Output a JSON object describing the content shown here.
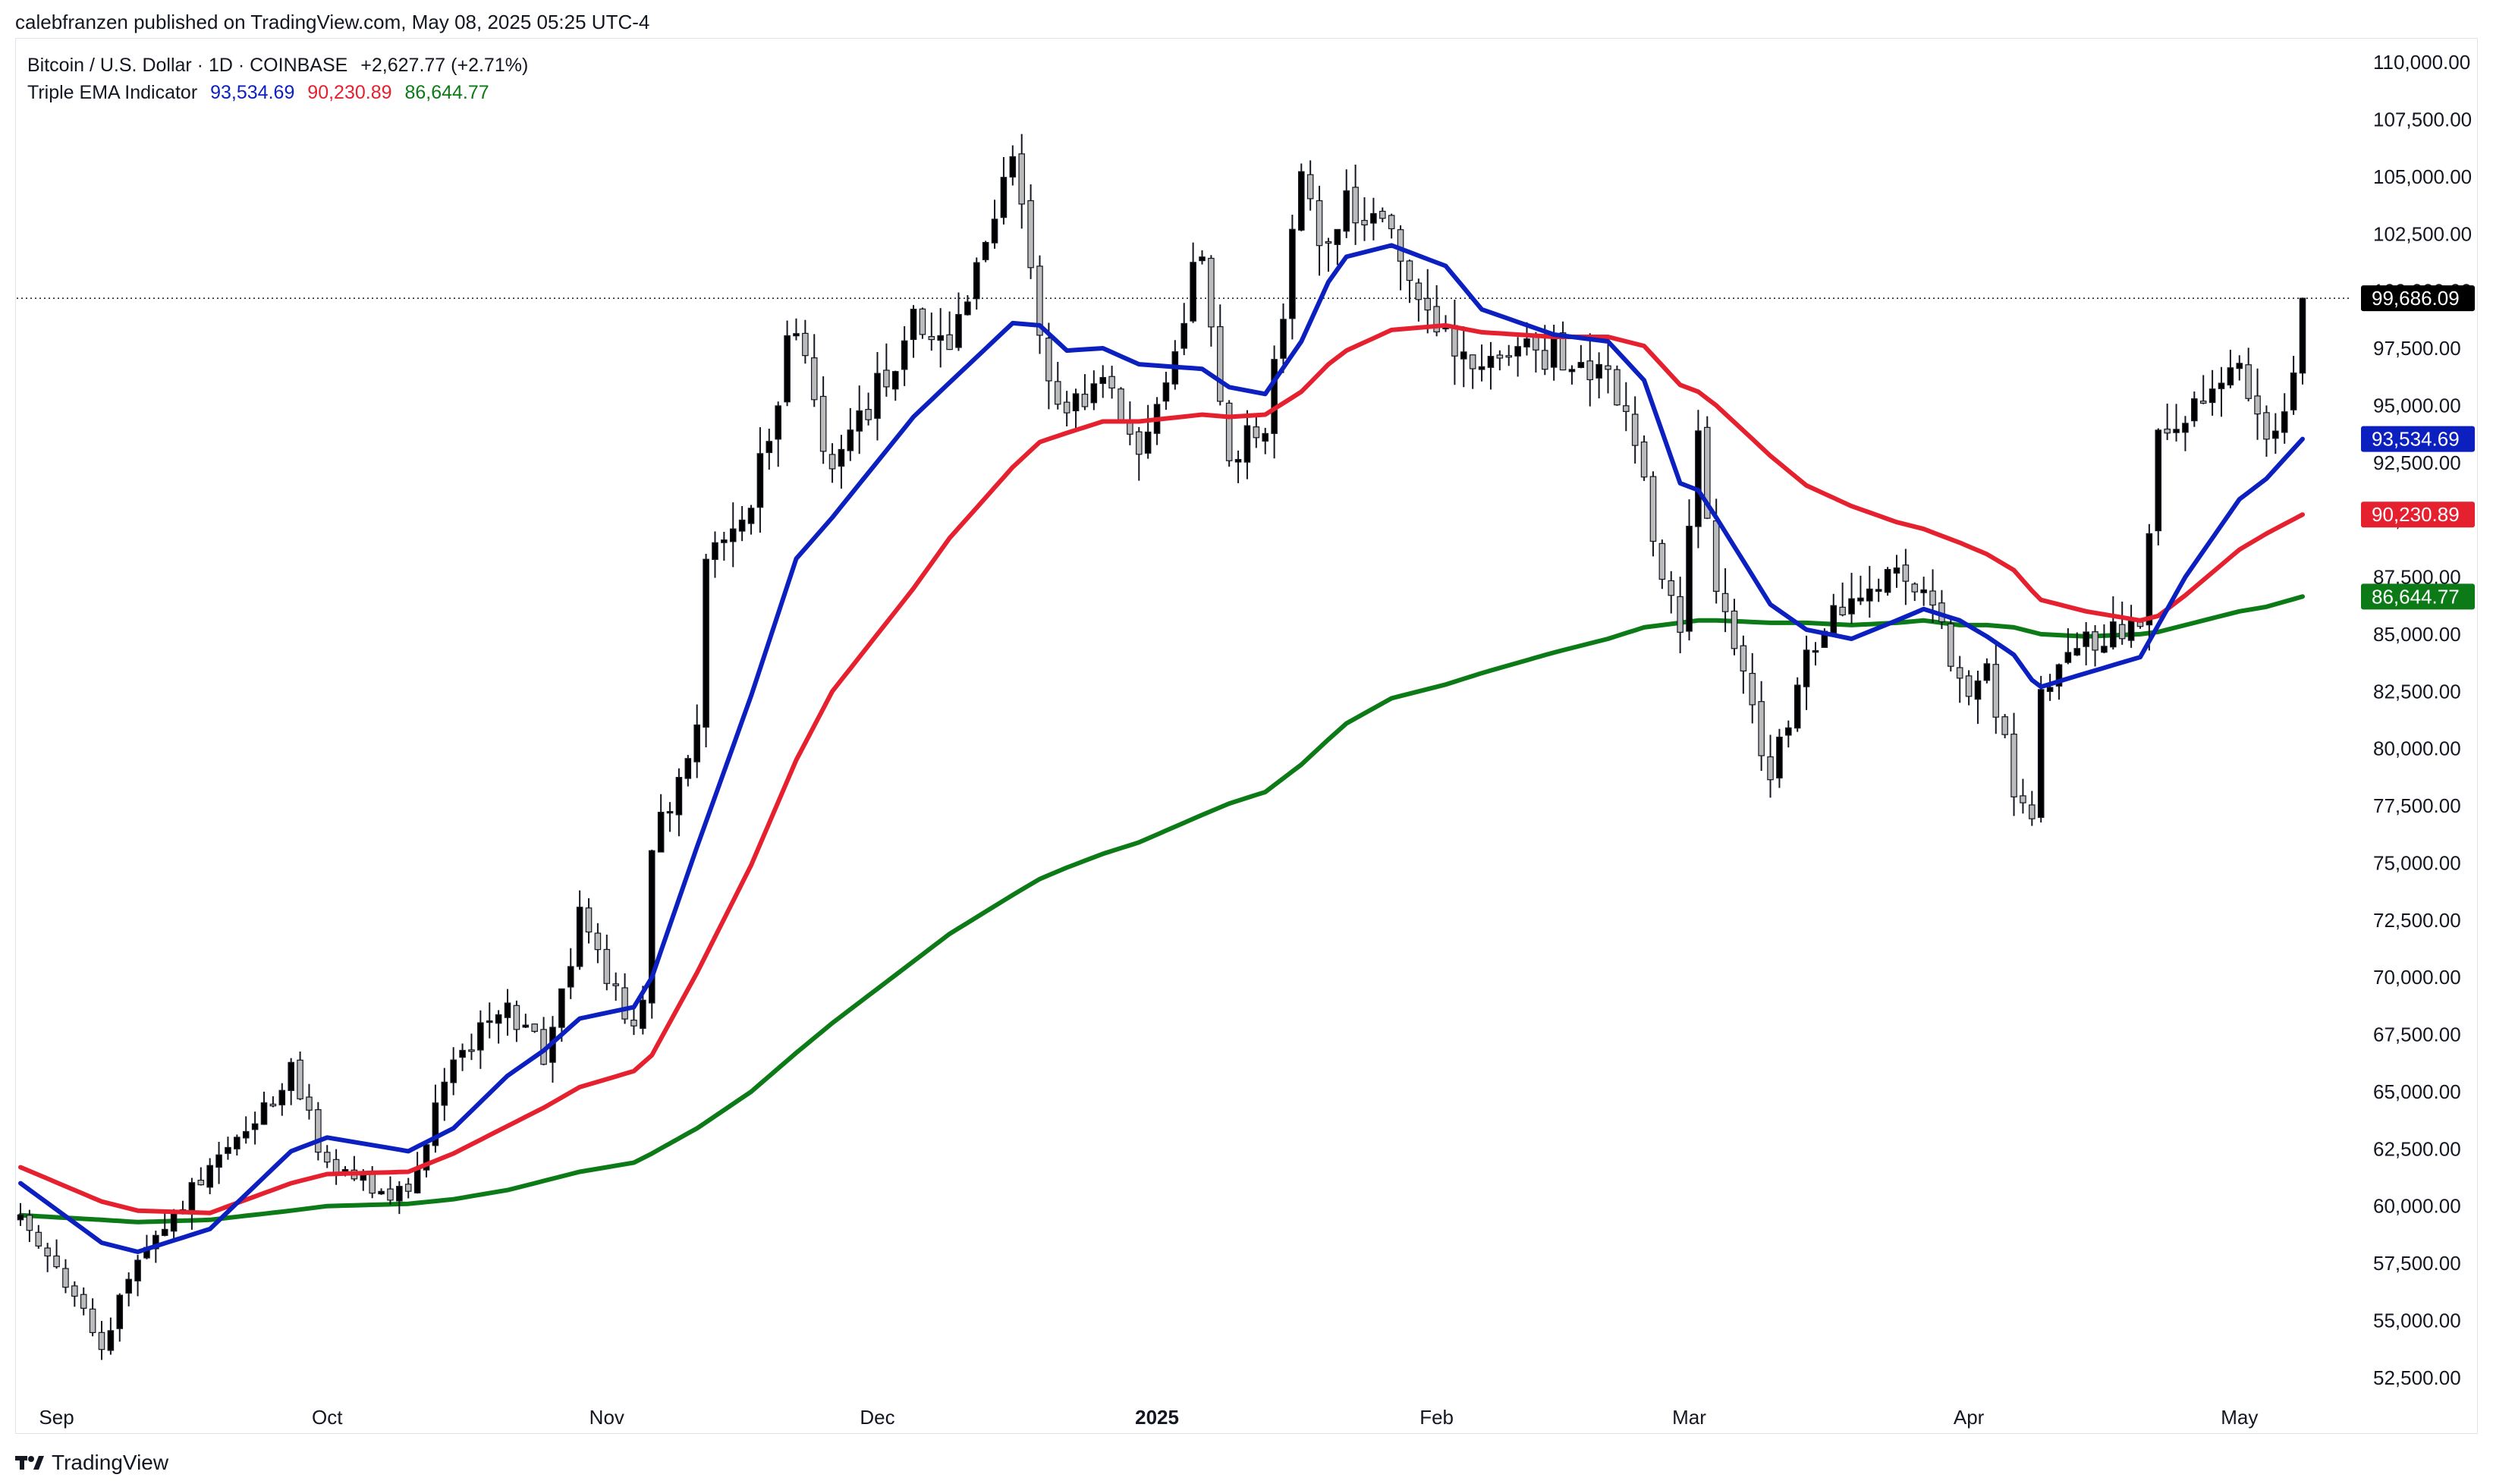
{
  "byline": "calebfranzen published on TradingView.com, May 08, 2025 05:25 UTC-4",
  "legend": {
    "symbol_line": "Bitcoin / U.S. Dollar · 1D · COINBASE",
    "change": "+2,627.77 (+2.71%)",
    "indicator_name": "Triple EMA Indicator",
    "ema_fast": "93,534.69",
    "ema_mid": "90,230.89",
    "ema_slow": "86,644.77"
  },
  "footer": {
    "brand": "TradingView"
  },
  "colors": {
    "ema_fast": "#0c1fbf",
    "ema_mid": "#e5202f",
    "ema_slow": "#0c7a16",
    "up": "#000000",
    "down": "#bbbbbb",
    "price_badge": "#000000"
  },
  "chart_data": {
    "type": "candlestick",
    "title": "Bitcoin / U.S. Dollar · 1D · COINBASE",
    "ylim": [
      51500,
      111000
    ],
    "y_ticks": [
      "52,500.00",
      "55,000.00",
      "57,500.00",
      "60,000.00",
      "62,500.00",
      "65,000.00",
      "67,500.00",
      "70,000.00",
      "72,500.00",
      "75,000.00",
      "77,500.00",
      "80,000.00",
      "82,500.00",
      "85,000.00",
      "87,500.00",
      "90,000.00",
      "92,500.00",
      "95,000.00",
      "97,500.00",
      "100,000.00",
      "102,500.00",
      "105,000.00",
      "107,500.00",
      "110,000.00"
    ],
    "x_ticks": [
      {
        "label": "Sep",
        "date": "2024-09-01"
      },
      {
        "label": "Oct",
        "date": "2024-10-01"
      },
      {
        "label": "Nov",
        "date": "2024-11-01"
      },
      {
        "label": "Dec",
        "date": "2024-12-01"
      },
      {
        "label": "2025",
        "date": "2025-01-01"
      },
      {
        "label": "Feb",
        "date": "2025-02-01"
      },
      {
        "label": "Mar",
        "date": "2025-03-01"
      },
      {
        "label": "Apr",
        "date": "2025-04-01"
      },
      {
        "label": "May",
        "date": "2025-05-01"
      }
    ],
    "date_range": [
      "2024-08-28",
      "2025-05-08"
    ],
    "last_price": 99686.09,
    "last_price_label": "99,686.09",
    "price_waypoints": [
      [
        "2024-08-28",
        59400
      ],
      [
        "2024-09-06",
        53900
      ],
      [
        "2024-09-10",
        57600
      ],
      [
        "2024-09-18",
        61800
      ],
      [
        "2024-09-27",
        65800
      ],
      [
        "2024-10-01",
        61600
      ],
      [
        "2024-10-10",
        60300
      ],
      [
        "2024-10-15",
        66800
      ],
      [
        "2024-10-21",
        68500
      ],
      [
        "2024-10-25",
        66700
      ],
      [
        "2024-10-29",
        72500
      ],
      [
        "2024-11-04",
        67800
      ],
      [
        "2024-11-05",
        69400
      ],
      [
        "2024-11-06",
        75800
      ],
      [
        "2024-11-11",
        81000
      ],
      [
        "2024-11-12",
        88700
      ],
      [
        "2024-11-17",
        90600
      ],
      [
        "2024-11-22",
        98900
      ],
      [
        "2024-11-26",
        91900
      ],
      [
        "2024-12-05",
        98800
      ],
      [
        "2024-12-09",
        97300
      ],
      [
        "2024-12-16",
        106100
      ],
      [
        "2024-12-19",
        97300
      ],
      [
        "2024-12-22",
        94800
      ],
      [
        "2024-12-26",
        95800
      ],
      [
        "2024-12-30",
        92700
      ],
      [
        "2025-01-06",
        101800
      ],
      [
        "2025-01-09",
        92500
      ],
      [
        "2025-01-13",
        94500
      ],
      [
        "2025-01-17",
        104400
      ],
      [
        "2025-01-20",
        101300
      ],
      [
        "2025-01-22",
        103700
      ],
      [
        "2025-01-27",
        102100
      ],
      [
        "2025-02-02",
        97700
      ],
      [
        "2025-02-06",
        96600
      ],
      [
        "2025-02-14",
        97500
      ],
      [
        "2025-02-20",
        96600
      ],
      [
        "2025-02-24",
        91500
      ],
      [
        "2025-02-28",
        84400
      ],
      [
        "2025-03-02",
        94300
      ],
      [
        "2025-03-04",
        86900
      ],
      [
        "2025-03-10",
        78600
      ],
      [
        "2025-03-14",
        84100
      ],
      [
        "2025-03-19",
        86800
      ],
      [
        "2025-03-24",
        88200
      ],
      [
        "2025-03-27",
        87200
      ],
      [
        "2025-03-31",
        82500
      ],
      [
        "2025-04-03",
        83300
      ],
      [
        "2025-04-06",
        78400
      ],
      [
        "2025-04-08",
        76300
      ],
      [
        "2025-04-09",
        82600
      ],
      [
        "2025-04-14",
        84600
      ],
      [
        "2025-04-20",
        85100
      ],
      [
        "2025-04-22",
        93500
      ],
      [
        "2025-04-25",
        94700
      ],
      [
        "2025-05-01",
        96500
      ],
      [
        "2025-05-04",
        94300
      ],
      [
        "2025-05-06",
        94800
      ],
      [
        "2025-05-07",
        97000
      ],
      [
        "2025-05-08",
        99686
      ]
    ],
    "ema_fast": {
      "name": "93,534.69",
      "color": "#0c1fbf",
      "points": [
        [
          "2024-08-28",
          61000
        ],
        [
          "2024-09-06",
          58400
        ],
        [
          "2024-09-10",
          58000
        ],
        [
          "2024-09-18",
          59000
        ],
        [
          "2024-09-27",
          62400
        ],
        [
          "2024-10-01",
          63000
        ],
        [
          "2024-10-10",
          62400
        ],
        [
          "2024-10-15",
          63400
        ],
        [
          "2024-10-21",
          65700
        ],
        [
          "2024-10-25",
          66800
        ],
        [
          "2024-10-29",
          68200
        ],
        [
          "2024-11-04",
          68700
        ],
        [
          "2024-11-06",
          70000
        ],
        [
          "2024-11-11",
          75700
        ],
        [
          "2024-11-17",
          82300
        ],
        [
          "2024-11-22",
          88300
        ],
        [
          "2024-11-26",
          90100
        ],
        [
          "2024-12-05",
          94500
        ],
        [
          "2024-12-09",
          96000
        ],
        [
          "2024-12-16",
          98600
        ],
        [
          "2024-12-19",
          98500
        ],
        [
          "2024-12-22",
          97400
        ],
        [
          "2024-12-26",
          97500
        ],
        [
          "2024-12-30",
          96800
        ],
        [
          "2025-01-06",
          96600
        ],
        [
          "2025-01-09",
          95800
        ],
        [
          "2025-01-13",
          95500
        ],
        [
          "2025-01-17",
          97800
        ],
        [
          "2025-01-20",
          100400
        ],
        [
          "2025-01-22",
          101500
        ],
        [
          "2025-01-27",
          102000
        ],
        [
          "2025-02-02",
          101100
        ],
        [
          "2025-02-06",
          99200
        ],
        [
          "2025-02-14",
          98100
        ],
        [
          "2025-02-20",
          97800
        ],
        [
          "2025-02-24",
          96100
        ],
        [
          "2025-02-28",
          91600
        ],
        [
          "2025-03-02",
          91300
        ],
        [
          "2025-03-04",
          90100
        ],
        [
          "2025-03-10",
          86300
        ],
        [
          "2025-03-14",
          85200
        ],
        [
          "2025-03-19",
          84800
        ],
        [
          "2025-03-24",
          85600
        ],
        [
          "2025-03-27",
          86100
        ],
        [
          "2025-03-31",
          85600
        ],
        [
          "2025-04-03",
          84900
        ],
        [
          "2025-04-06",
          84100
        ],
        [
          "2025-04-08",
          83000
        ],
        [
          "2025-04-09",
          82700
        ],
        [
          "2025-04-14",
          83300
        ],
        [
          "2025-04-20",
          84000
        ],
        [
          "2025-04-22",
          85400
        ],
        [
          "2025-04-25",
          87500
        ],
        [
          "2025-05-01",
          90900
        ],
        [
          "2025-05-04",
          91800
        ],
        [
          "2025-05-08",
          93535
        ]
      ]
    },
    "ema_mid": {
      "name": "90,230.89",
      "color": "#e5202f",
      "points": [
        [
          "2024-08-28",
          61700
        ],
        [
          "2024-09-06",
          60200
        ],
        [
          "2024-09-10",
          59800
        ],
        [
          "2024-09-18",
          59700
        ],
        [
          "2024-09-27",
          61000
        ],
        [
          "2024-10-01",
          61400
        ],
        [
          "2024-10-10",
          61500
        ],
        [
          "2024-10-15",
          62300
        ],
        [
          "2024-10-21",
          63500
        ],
        [
          "2024-10-25",
          64300
        ],
        [
          "2024-10-29",
          65200
        ],
        [
          "2024-11-04",
          65900
        ],
        [
          "2024-11-06",
          66600
        ],
        [
          "2024-11-11",
          70200
        ],
        [
          "2024-11-17",
          74900
        ],
        [
          "2024-11-22",
          79500
        ],
        [
          "2024-11-26",
          82500
        ],
        [
          "2024-12-05",
          87000
        ],
        [
          "2024-12-09",
          89200
        ],
        [
          "2024-12-16",
          92300
        ],
        [
          "2024-12-19",
          93400
        ],
        [
          "2024-12-22",
          93800
        ],
        [
          "2024-12-26",
          94300
        ],
        [
          "2024-12-30",
          94300
        ],
        [
          "2025-01-06",
          94600
        ],
        [
          "2025-01-09",
          94500
        ],
        [
          "2025-01-13",
          94600
        ],
        [
          "2025-01-17",
          95600
        ],
        [
          "2025-01-20",
          96800
        ],
        [
          "2025-01-22",
          97400
        ],
        [
          "2025-01-27",
          98300
        ],
        [
          "2025-02-02",
          98500
        ],
        [
          "2025-02-06",
          98200
        ],
        [
          "2025-02-14",
          98000
        ],
        [
          "2025-02-20",
          98000
        ],
        [
          "2025-02-24",
          97600
        ],
        [
          "2025-02-28",
          95900
        ],
        [
          "2025-03-02",
          95600
        ],
        [
          "2025-03-04",
          95000
        ],
        [
          "2025-03-10",
          92800
        ],
        [
          "2025-03-14",
          91500
        ],
        [
          "2025-03-19",
          90600
        ],
        [
          "2025-03-24",
          89900
        ],
        [
          "2025-03-27",
          89600
        ],
        [
          "2025-03-31",
          89000
        ],
        [
          "2025-04-03",
          88500
        ],
        [
          "2025-04-06",
          87800
        ],
        [
          "2025-04-08",
          86900
        ],
        [
          "2025-04-09",
          86500
        ],
        [
          "2025-04-14",
          86000
        ],
        [
          "2025-04-20",
          85600
        ],
        [
          "2025-04-22",
          85800
        ],
        [
          "2025-04-25",
          86700
        ],
        [
          "2025-05-01",
          88700
        ],
        [
          "2025-05-04",
          89400
        ],
        [
          "2025-05-08",
          90231
        ]
      ]
    },
    "ema_slow": {
      "name": "86,644.77",
      "color": "#0c7a16",
      "points": [
        [
          "2024-08-28",
          59600
        ],
        [
          "2024-09-06",
          59400
        ],
        [
          "2024-09-10",
          59300
        ],
        [
          "2024-09-18",
          59400
        ],
        [
          "2024-09-27",
          59800
        ],
        [
          "2024-10-01",
          60000
        ],
        [
          "2024-10-10",
          60100
        ],
        [
          "2024-10-15",
          60300
        ],
        [
          "2024-10-21",
          60700
        ],
        [
          "2024-10-25",
          61100
        ],
        [
          "2024-10-29",
          61500
        ],
        [
          "2024-11-04",
          61900
        ],
        [
          "2024-11-06",
          62300
        ],
        [
          "2024-11-11",
          63400
        ],
        [
          "2024-11-17",
          65000
        ],
        [
          "2024-11-22",
          66700
        ],
        [
          "2024-11-26",
          68000
        ],
        [
          "2024-12-05",
          70700
        ],
        [
          "2024-12-09",
          71900
        ],
        [
          "2024-12-16",
          73600
        ],
        [
          "2024-12-19",
          74300
        ],
        [
          "2024-12-22",
          74800
        ],
        [
          "2024-12-26",
          75400
        ],
        [
          "2024-12-30",
          75900
        ],
        [
          "2025-01-06",
          77100
        ],
        [
          "2025-01-09",
          77600
        ],
        [
          "2025-01-13",
          78100
        ],
        [
          "2025-01-17",
          79300
        ],
        [
          "2025-01-20",
          80400
        ],
        [
          "2025-01-22",
          81100
        ],
        [
          "2025-01-27",
          82200
        ],
        [
          "2025-02-02",
          82800
        ],
        [
          "2025-02-06",
          83300
        ],
        [
          "2025-02-14",
          84200
        ],
        [
          "2025-02-20",
          84800
        ],
        [
          "2025-02-24",
          85300
        ],
        [
          "2025-02-28",
          85500
        ],
        [
          "2025-03-02",
          85600
        ],
        [
          "2025-03-04",
          85600
        ],
        [
          "2025-03-10",
          85500
        ],
        [
          "2025-03-14",
          85500
        ],
        [
          "2025-03-19",
          85400
        ],
        [
          "2025-03-24",
          85500
        ],
        [
          "2025-03-27",
          85600
        ],
        [
          "2025-03-31",
          85400
        ],
        [
          "2025-04-03",
          85400
        ],
        [
          "2025-04-06",
          85300
        ],
        [
          "2025-04-08",
          85100
        ],
        [
          "2025-04-09",
          85000
        ],
        [
          "2025-04-14",
          84900
        ],
        [
          "2025-04-20",
          85000
        ],
        [
          "2025-04-22",
          85100
        ],
        [
          "2025-04-25",
          85400
        ],
        [
          "2025-05-01",
          86000
        ],
        [
          "2025-05-04",
          86200
        ],
        [
          "2025-05-08",
          86645
        ]
      ]
    }
  }
}
